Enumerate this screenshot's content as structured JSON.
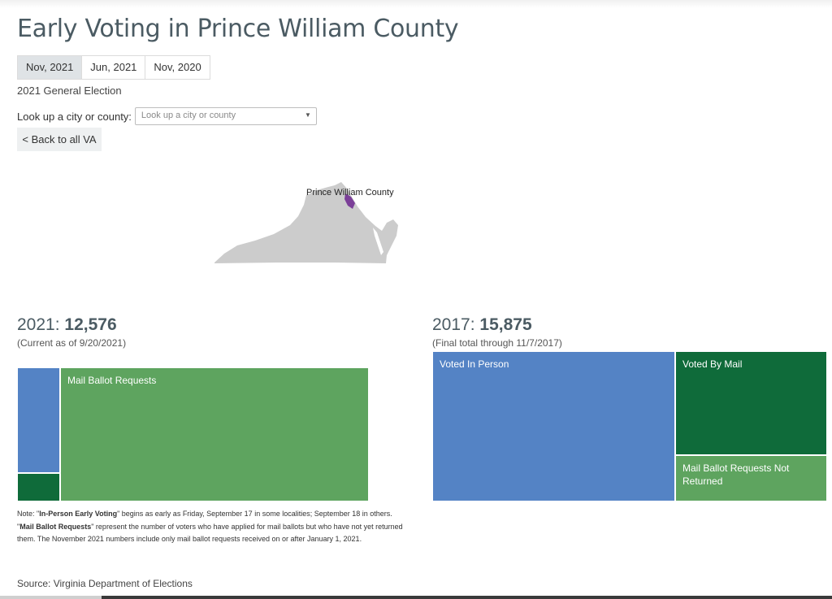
{
  "title": "Early Voting in Prince William County",
  "tabs": [
    {
      "label": "Nov, 2021",
      "active": true
    },
    {
      "label": "Jun, 2021",
      "active": false
    },
    {
      "label": "Nov, 2020",
      "active": false
    }
  ],
  "election_name": "2021 General Election",
  "lookup": {
    "label": "Look up a city or county:",
    "placeholder": "Look up a city or county"
  },
  "back_label": "< Back to all VA",
  "map": {
    "highlight_label": "Prince William County",
    "state_color": "#cccccc",
    "highlight_color": "#7b3f98"
  },
  "colors": {
    "in_person": "#5483c5",
    "by_mail": "#0f6b3a",
    "requests": "#5ea45f"
  },
  "totals": {
    "current": {
      "year_label": "2021:",
      "value": "12,576",
      "note": "(Current as of 9/20/2021)"
    },
    "previous": {
      "year_label": "2017:",
      "value": "15,875",
      "note": "(Final total through 11/7/2017)"
    }
  },
  "chart_data": [
    {
      "type": "treemap",
      "total": 12576,
      "cells": [
        {
          "label": "In-Person Early Voting",
          "value": 1330,
          "shown_label": ""
        },
        {
          "label": "Voted By Mail",
          "value": 430,
          "shown_label": ""
        },
        {
          "label": "Mail Ballot Requests",
          "value": 10816,
          "shown_label": "Mail Ballot Requests"
        }
      ]
    },
    {
      "type": "treemap",
      "total": 15875,
      "cells": [
        {
          "label": "Voted In Person",
          "value": 9800,
          "shown_label": "Voted In Person"
        },
        {
          "label": "Voted By Mail",
          "value": 3840,
          "shown_label": "Voted By Mail"
        },
        {
          "label": "Mail Ballot Requests Not Returned",
          "value": 2235,
          "shown_label": "Mail Ballot Requests Not Returned"
        }
      ]
    }
  ],
  "footnote": {
    "p1": "Note: \"",
    "b1": "In-Person Early Voting",
    "p2": "\" begins as early as Friday, September 17 in some localities; September 18 in others. \"",
    "b2": "Mail Ballot Requests",
    "p3": "\" represent the number of voters who have applied for mail ballots but who have not yet returned them. The November 2021 numbers include only mail ballot requests received on or after January 1, 2021."
  },
  "source": "Source: Virginia Department of Elections"
}
